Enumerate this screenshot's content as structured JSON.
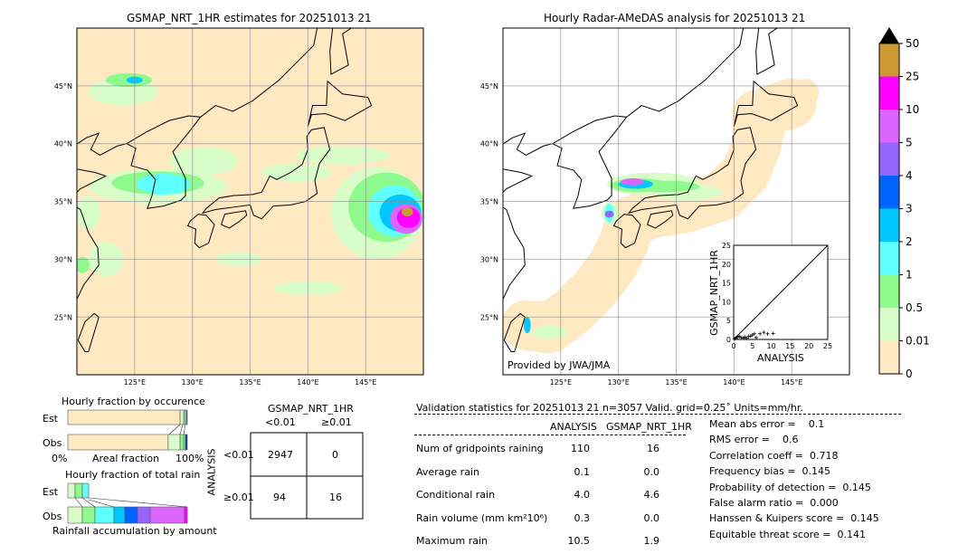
{
  "map_left": {
    "title": "GSMAP_NRT_1HR estimates for 20251013 21"
  },
  "map_right": {
    "title": "Hourly Radar-AMeDAS analysis for 20251013 21",
    "credit": "Provided by JWA/JMA"
  },
  "lon_ticks": [
    "125°E",
    "130°E",
    "135°E",
    "140°E",
    "145°E"
  ],
  "lat_ticks": [
    "45°N",
    "40°N",
    "35°N",
    "30°N",
    "25°N"
  ],
  "colorbar": {
    "labels": [
      "0",
      "0.01",
      "0.5",
      "1",
      "2",
      "3",
      "4",
      "5",
      "10",
      "25",
      "50"
    ],
    "colors": [
      "#fee9c2",
      "#d9fdc8",
      "#8ef98c",
      "#60ffff",
      "#00c8ff",
      "#0064ff",
      "#9664ff",
      "#dc64ff",
      "#ff00ff",
      "#cc9933"
    ],
    "extend_color": "#000000"
  },
  "scatter": {
    "xlabel": "ANALYSIS",
    "ylabel": "GSMAP_NRT_1HR",
    "ticks": [
      "0",
      "5",
      "10",
      "15",
      "20",
      "25"
    ],
    "range": [
      0,
      25
    ]
  },
  "occurrence": {
    "title": "Hourly fraction by occurence",
    "est_label": "Est",
    "obs_label": "Obs",
    "left_label": "0%",
    "axis_label": "Areal fraction",
    "right_label": "100%"
  },
  "total_rain": {
    "title": "Hourly fraction of total rain",
    "est_label": "Est",
    "obs_label": "Obs",
    "axis_label": "Rainfall accumulation by amount"
  },
  "contingency": {
    "title": "GSMAP_NRT_1HR",
    "col_headers": [
      "<0.01",
      "≥0.01"
    ],
    "row_axis": "ANALYSIS",
    "row_headers": [
      "<0.01",
      "≥0.01"
    ],
    "cells": [
      [
        "2947",
        "0"
      ],
      [
        "94",
        "16"
      ]
    ]
  },
  "validation": {
    "header": "Validation statistics for 20251013 21  n=3057 Valid. grid=0.25˚ Units=mm/hr.",
    "col_analysis": "ANALYSIS",
    "col_gsmap": "GSMAP_NRT_1HR",
    "rows": [
      {
        "label": "Num of gridpoints raining",
        "analysis": "110",
        "gsmap": "16"
      },
      {
        "label": "Average rain",
        "analysis": "0.1",
        "gsmap": "0.0"
      },
      {
        "label": "Conditional rain",
        "analysis": "4.0",
        "gsmap": "4.6"
      },
      {
        "label": "Rain volume (mm km²10⁶)",
        "analysis": "0.3",
        "gsmap": "0.0"
      },
      {
        "label": "Maximum rain",
        "analysis": "10.5",
        "gsmap": "1.9"
      }
    ],
    "scores": [
      "Mean abs error =    0.1",
      "RMS error =    0.6",
      "Correlation coeff =  0.718",
      "Frequency bias =  0.145",
      "Probability of detection =  0.145",
      "False alarm ratio =  0.000",
      "Hanssen & Kuipers score =  0.145",
      "Equitable threat score =  0.141"
    ]
  },
  "chart_data": [
    {
      "type": "heatmap",
      "title": "GSMAP_NRT_1HR estimates for 20251013 21",
      "xlim": [
        "120°E",
        "150°E"
      ],
      "ylim": [
        "20°N",
        "50°N"
      ],
      "grid": true
    },
    {
      "type": "heatmap",
      "title": "Hourly Radar-AMeDAS analysis for 20251013 21",
      "xlim": [
        "120°E",
        "150°E"
      ],
      "ylim": [
        "20°N",
        "50°N"
      ],
      "grid": true
    },
    {
      "type": "scatter",
      "xlabel": "ANALYSIS",
      "ylabel": "GSMAP_NRT_1HR",
      "xlim": [
        0,
        25
      ],
      "ylim": [
        0,
        25
      ],
      "points": [
        [
          0.3,
          0.2
        ],
        [
          0.6,
          0.4
        ],
        [
          1,
          0.6
        ],
        [
          1.5,
          0.8
        ],
        [
          2,
          0.5
        ],
        [
          2.5,
          0.4
        ],
        [
          3,
          0.6
        ],
        [
          3.5,
          0.3
        ],
        [
          4,
          0.8
        ],
        [
          4.5,
          0.9
        ],
        [
          5,
          1.2
        ],
        [
          5.5,
          1.5
        ],
        [
          6,
          0.5
        ],
        [
          7,
          1.5
        ],
        [
          8,
          1.9
        ],
        [
          9,
          1.5
        ],
        [
          10.5,
          1.6
        ]
      ]
    },
    {
      "type": "bar",
      "title": "Hourly fraction by occurence",
      "categories": [
        "Est",
        "Obs"
      ],
      "series": [
        {
          "values": [
            94,
            84
          ]
        },
        {
          "values": [
            3,
            10
          ]
        },
        {
          "values": [
            1.5,
            3
          ]
        },
        {
          "values": [
            1,
            1.5
          ]
        },
        {
          "values": [
            0.5,
            1.5
          ]
        }
      ]
    },
    {
      "type": "bar",
      "title": "Hourly fraction of total rain",
      "categories": [
        "Est",
        "Obs"
      ]
    }
  ]
}
